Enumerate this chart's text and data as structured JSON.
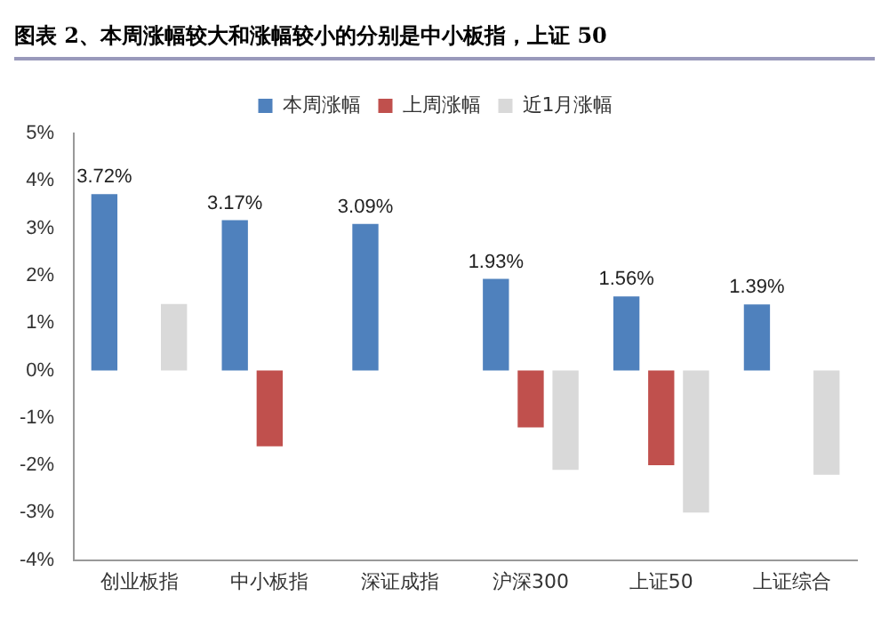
{
  "chart_data": {
    "type": "bar",
    "title": "图表 2、本周涨幅较大和涨幅较小的分别是中小板指，上证 50",
    "categories": [
      "创业板指",
      "中小板指",
      "深证成指",
      "沪深300",
      "上证50",
      "上证综合"
    ],
    "series": [
      {
        "name": "本周涨幅",
        "color": "#4f81bd",
        "values": [
          3.72,
          3.17,
          3.09,
          1.93,
          1.56,
          1.39
        ],
        "value_labels": [
          "3.72%",
          "3.17%",
          "3.09%",
          "1.93%",
          "1.56%",
          "1.39%"
        ]
      },
      {
        "name": "上周涨幅",
        "color": "#c0504d",
        "values": [
          null,
          -1.6,
          null,
          -1.2,
          -2.0,
          null
        ]
      },
      {
        "name": "近1月涨幅",
        "color": "#d9d9d9",
        "values": [
          1.4,
          null,
          null,
          -2.1,
          -3.0,
          -2.2
        ]
      }
    ],
    "ylim": [
      -4,
      5
    ],
    "yticks": [
      {
        "value": -4,
        "label": "-4%"
      },
      {
        "value": -3,
        "label": "-3%"
      },
      {
        "value": -2,
        "label": "-2%"
      },
      {
        "value": -1,
        "label": "-1%"
      },
      {
        "value": 0,
        "label": "0%"
      },
      {
        "value": 1,
        "label": "1%"
      },
      {
        "value": 2,
        "label": "2%"
      },
      {
        "value": 3,
        "label": "3%"
      },
      {
        "value": 4,
        "label": "4%"
      },
      {
        "value": 5,
        "label": "5%"
      }
    ],
    "grid": false,
    "legend": "top"
  }
}
